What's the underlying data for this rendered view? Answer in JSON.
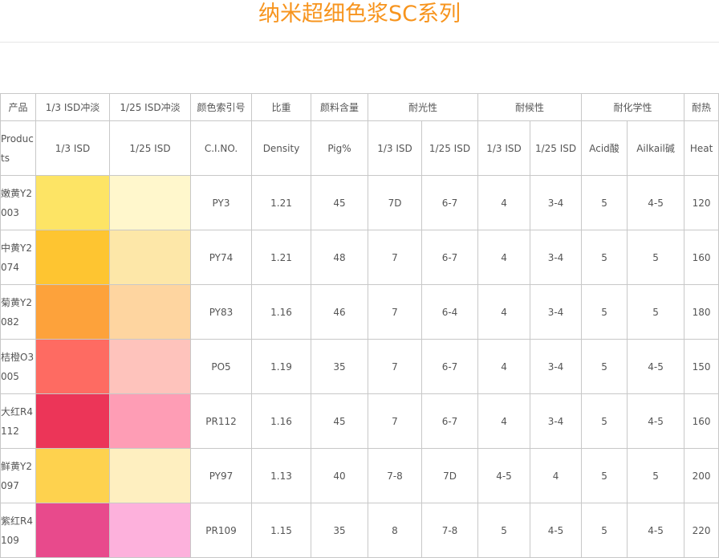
{
  "title": "纳米超细色浆SC系列",
  "table": {
    "header_top": [
      "产品",
      "1/3 ISD冲淡",
      "1/25 ISD冲淡",
      "颜色索引号",
      "比重",
      "颜料含量",
      "耐光性",
      "耐候性",
      "耐化学性",
      "耐热"
    ],
    "header_sub": [
      "Products",
      "1/3 ISD",
      "1/25 ISD",
      "C.I.NO.",
      "Density",
      "Pig%",
      "1/3 ISD",
      "1/25 ISD",
      "1/3 ISD",
      "1/25 ISD",
      "Acid酸",
      "Ailkail碱",
      "Heat"
    ],
    "rows": [
      {
        "product": "嫩黄Y2003",
        "color_1_3": "#fde465",
        "color_1_25": "#fff7cc",
        "cells": [
          "PY3",
          "1.21",
          "45",
          "7D",
          "6-7",
          "4",
          "3-4",
          "5",
          "4-5",
          "120"
        ]
      },
      {
        "product": "中黄Y2074",
        "color_1_3": "#fec531",
        "color_1_25": "#fde7a8",
        "cells": [
          "PY74",
          "1.21",
          "48",
          "7",
          "6-7",
          "4",
          "3-4",
          "5",
          "5",
          "160"
        ]
      },
      {
        "product": "菊黄Y2082",
        "color_1_3": "#fda23b",
        "color_1_25": "#fed5a0",
        "cells": [
          "PY83",
          "1.16",
          "46",
          "7",
          "6-4",
          "4",
          "3-4",
          "5",
          "5",
          "180"
        ]
      },
      {
        "product": "桔橙O3005",
        "color_1_3": "#fe6b62",
        "color_1_25": "#fec3bc",
        "cells": [
          "PO5",
          "1.19",
          "35",
          "7",
          "6-7",
          "4",
          "3-4",
          "5",
          "4-5",
          "150"
        ]
      },
      {
        "product": "大红R4112",
        "color_1_3": "#ec3558",
        "color_1_25": "#fe9db5",
        "cells": [
          "PR112",
          "1.16",
          "45",
          "7",
          "6-7",
          "4",
          "3-4",
          "5",
          "4-5",
          "160"
        ]
      },
      {
        "product": "鲜黄Y2097",
        "color_1_3": "#fed24e",
        "color_1_25": "#feefc0",
        "cells": [
          "PY97",
          "1.13",
          "40",
          "7-8",
          "7D",
          "4-5",
          "4",
          "5",
          "5",
          "200"
        ]
      },
      {
        "product": "紫红R4109",
        "color_1_3": "#e84a8c",
        "color_1_25": "#fdb1dc",
        "cells": [
          "PR109",
          "1.15",
          "35",
          "8",
          "7-8",
          "5",
          "4-5",
          "5",
          "4-5",
          "220"
        ]
      }
    ]
  }
}
